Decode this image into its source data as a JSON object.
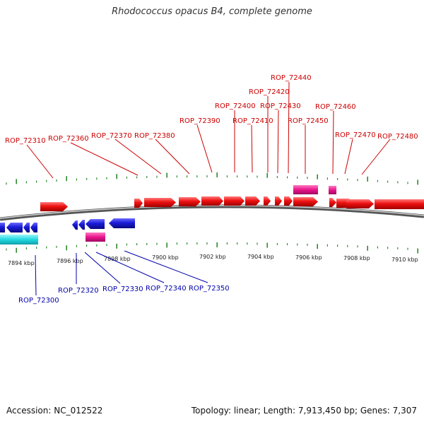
{
  "title": "Rhodococcus opacus B4, complete genome",
  "footer": {
    "accession": "Accession: NC_012522",
    "topology": "Topology: linear; Length: 7,913,450 bp; Genes: 7,307"
  },
  "colors": {
    "forward_gene": "#ee1111",
    "reverse_gene": "#1a1ad8",
    "rna_pink": "#e8148c",
    "rna_cyan": "#22d8e0",
    "tick": "#2d8a2d",
    "backbone": "#777777",
    "forward_label": "#cc0000",
    "reverse_label": "#0000aa"
  },
  "scale": {
    "unit": "kbp",
    "labels": [
      "7894 kbp",
      "7896 kbp",
      "7898 kbp",
      "7900 kbp",
      "7902 kbp",
      "7904 kbp",
      "7906 kbp",
      "7908 kbp",
      "7910 kbp"
    ]
  },
  "forward_genes": [
    "ROP_72310",
    "ROP_72360",
    "ROP_72370",
    "ROP_72380",
    "ROP_72390",
    "ROP_72400",
    "ROP_72410",
    "ROP_72420",
    "ROP_72430",
    "ROP_72440",
    "ROP_72450",
    "ROP_72460",
    "ROP_72470",
    "ROP_72480"
  ],
  "reverse_genes": [
    "ROP_72300",
    "ROP_72320",
    "ROP_72330",
    "ROP_72340",
    "ROP_72350"
  ]
}
